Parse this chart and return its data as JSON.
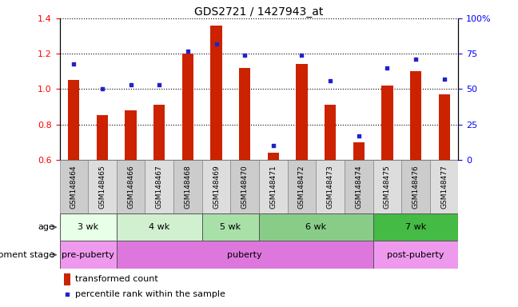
{
  "title": "GDS2721 / 1427943_at",
  "samples": [
    "GSM148464",
    "GSM148465",
    "GSM148466",
    "GSM148467",
    "GSM148468",
    "GSM148469",
    "GSM148470",
    "GSM148471",
    "GSM148472",
    "GSM148473",
    "GSM148474",
    "GSM148475",
    "GSM148476",
    "GSM148477"
  ],
  "bar_values": [
    1.05,
    0.85,
    0.88,
    0.91,
    1.2,
    1.36,
    1.12,
    0.64,
    1.14,
    0.91,
    0.7,
    1.02,
    1.1,
    0.97
  ],
  "dot_percentile": [
    68,
    50,
    53,
    53,
    77,
    82,
    74,
    10,
    74,
    56,
    17,
    65,
    71,
    57
  ],
  "bar_color": "#cc2200",
  "dot_color": "#2222cc",
  "ylim_left": [
    0.6,
    1.4
  ],
  "yticks_left": [
    0.6,
    0.8,
    1.0,
    1.2,
    1.4
  ],
  "yticks_right": [
    0,
    25,
    50,
    75,
    100
  ],
  "age_groups": [
    {
      "label": "3 wk",
      "start": 0,
      "end": 2,
      "color": "#e8ffe8"
    },
    {
      "label": "4 wk",
      "start": 2,
      "end": 5,
      "color": "#d0f0d0"
    },
    {
      "label": "5 wk",
      "start": 5,
      "end": 7,
      "color": "#a8e0a8"
    },
    {
      "label": "6 wk",
      "start": 7,
      "end": 11,
      "color": "#88cc88"
    },
    {
      "label": "7 wk",
      "start": 11,
      "end": 14,
      "color": "#44bb44"
    }
  ],
  "dev_groups": [
    {
      "label": "pre-puberty",
      "start": 0,
      "end": 2,
      "color": "#ee99ee"
    },
    {
      "label": "puberty",
      "start": 2,
      "end": 11,
      "color": "#dd77dd"
    },
    {
      "label": "post-puberty",
      "start": 11,
      "end": 14,
      "color": "#ee99ee"
    }
  ],
  "legend_bar_label": "transformed count",
  "legend_dot_label": "percentile rank within the sample",
  "age_label": "age",
  "dev_label": "development stage",
  "bar_bottom": 0.6
}
